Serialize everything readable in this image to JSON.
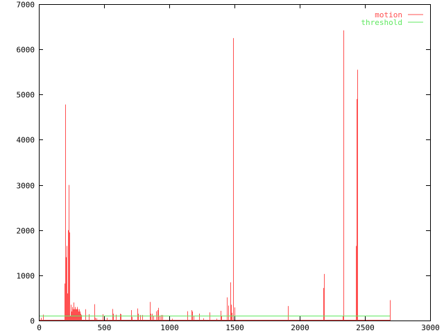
{
  "chart_data": {
    "type": "impulse",
    "title": "",
    "xlabel": "",
    "ylabel": "",
    "xlim": [
      0,
      3000
    ],
    "ylim": [
      0,
      7000
    ],
    "x_ticks": [
      0,
      500,
      1000,
      1500,
      2000,
      2500,
      3000
    ],
    "y_ticks": [
      0,
      1000,
      2000,
      3000,
      4000,
      5000,
      6000,
      7000
    ],
    "grid": false,
    "legend_position": "top-right",
    "colors": {
      "motion": "#ff5050",
      "threshold": "#60e860",
      "axes": "#000000"
    },
    "series": [
      {
        "name": "motion",
        "style": "impulses",
        "x": [
          18,
          33,
          197,
          202,
          207,
          213,
          218,
          223,
          229,
          234,
          239,
          245,
          250,
          255,
          261,
          266,
          271,
          277,
          282,
          287,
          293,
          298,
          303,
          309,
          314,
          319,
          324,
          355,
          384,
          424,
          430,
          440,
          492,
          500,
          520,
          562,
          570,
          591,
          620,
          628,
          708,
          715,
          754,
          762,
          775,
          790,
          849,
          858,
          865,
          880,
          900,
          910,
          915,
          925,
          938,
          945,
          1020,
          1139,
          1170,
          1175,
          1185,
          1227,
          1260,
          1309,
          1360,
          1394,
          1400,
          1442,
          1450,
          1466,
          1472,
          1480,
          1491,
          1500,
          1910,
          1912,
          2183,
          2186,
          2330,
          2333,
          2336,
          2432,
          2435,
          2440,
          2692
        ],
        "y": [
          60,
          130,
          820,
          4780,
          1400,
          1650,
          600,
          2000,
          3000,
          1950,
          100,
          350,
          200,
          300,
          250,
          400,
          250,
          300,
          250,
          250,
          300,
          250,
          200,
          250,
          200,
          150,
          120,
          250,
          140,
          360,
          60,
          50,
          140,
          100,
          60,
          256,
          150,
          128,
          150,
          140,
          230,
          80,
          266,
          150,
          120,
          120,
          410,
          150,
          150,
          100,
          205,
          230,
          280,
          100,
          120,
          120,
          40,
          205,
          230,
          200,
          100,
          154,
          50,
          180,
          40,
          215,
          100,
          512,
          330,
          845,
          350,
          170,
          6250,
          290,
          320,
          140,
          720,
          1030,
          100,
          4830,
          6420,
          1650,
          4900,
          5550,
          450
        ]
      },
      {
        "name": "threshold",
        "style": "lines",
        "x": [
          0,
          2692
        ],
        "y": [
          100,
          100
        ]
      }
    ]
  }
}
